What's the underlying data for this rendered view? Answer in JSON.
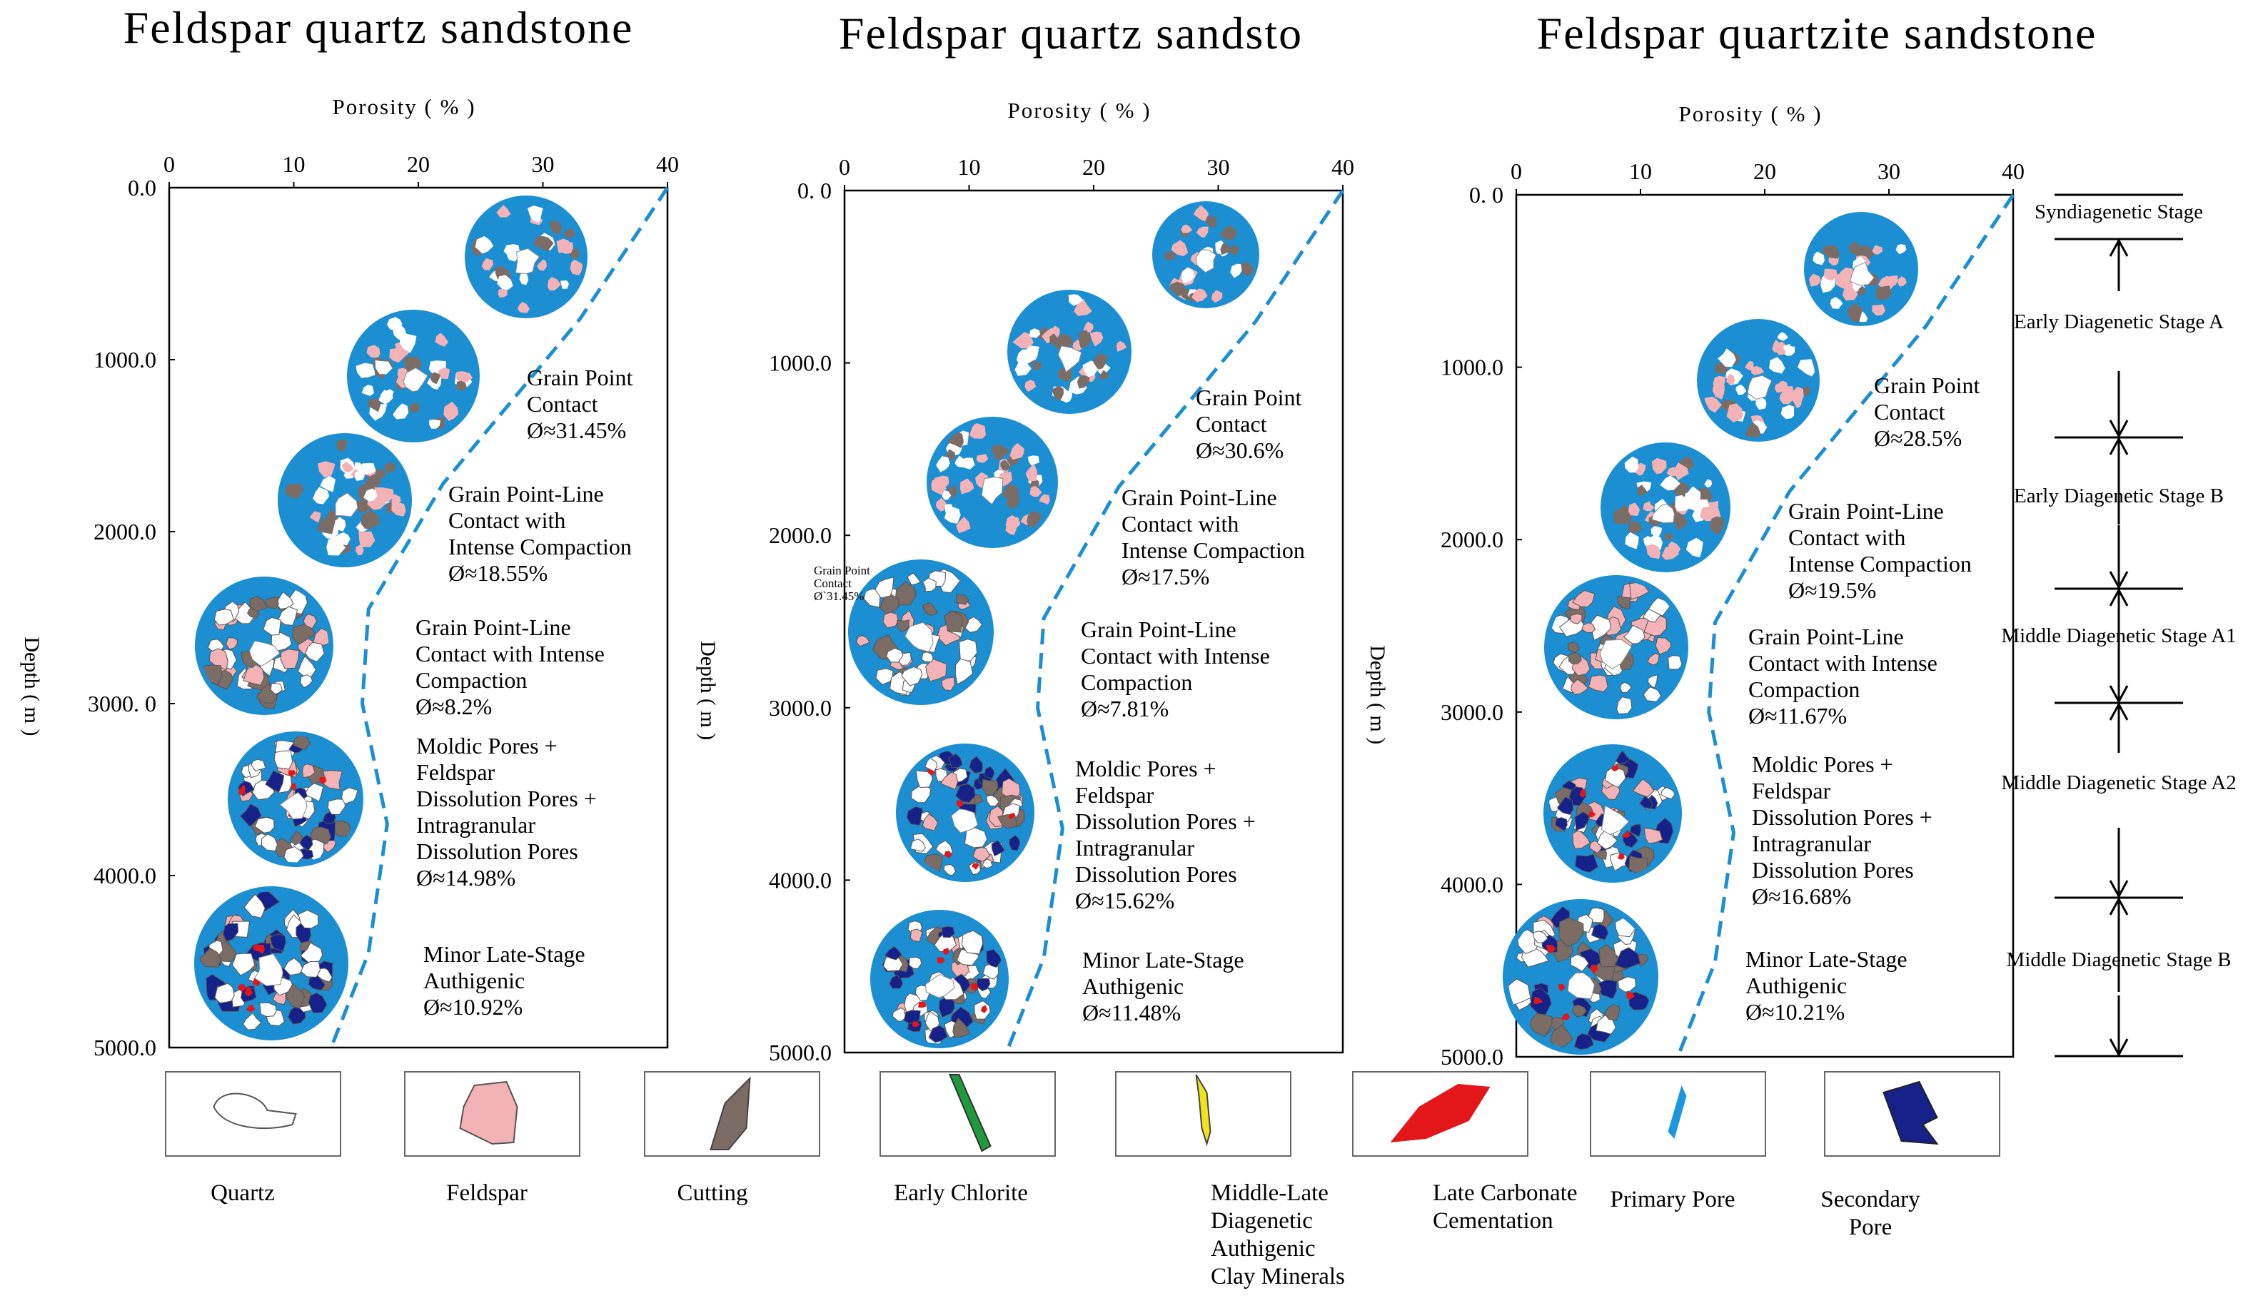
{
  "colors": {
    "disk_blue": "#1b8fd2",
    "curve_blue": "#1b8fd2",
    "quartz": "#ffffff",
    "feldspar": "#f3b2b6",
    "cutting": "#7b6c66",
    "early_chlorite": "#1f9a3c",
    "clay_minerals": "#f2e21e",
    "late_carbonate": "#e3161a",
    "primary_pore": "#1e96de",
    "secondary_pore": "#16218a"
  },
  "panels": [
    {
      "title": "Feldspar quartz sandstone",
      "x_axis_title": "Porosity ( % )",
      "x_ticks": [
        "0",
        "10",
        "20",
        "30",
        "40"
      ],
      "y_axis_title": "Depth ( m )",
      "y_ticks": [
        "0.0",
        "1000.0",
        "2000.0",
        "3000. 0",
        "4000.0",
        "5000.0"
      ],
      "annotations": [
        {
          "lines": [
            "Grain Point",
            "Contact",
            "Ø≈31.45%"
          ]
        },
        {
          "lines": [
            "Grain Point-Line",
            "Contact with",
            "Intense Compaction",
            "Ø≈18.55%"
          ]
        },
        {
          "lines": [
            "Grain Point-Line",
            "Contact with Intense",
            "Compaction",
            "Ø≈8.2%"
          ]
        },
        {
          "lines": [
            "Moldic Pores +",
            "Feldspar",
            "Dissolution Pores +",
            "Intragranular",
            "Dissolution Pores",
            "Ø≈14.98%"
          ]
        },
        {
          "lines": [
            "Minor Late-Stage",
            "Authigenic",
            "Ø≈10.92%"
          ]
        }
      ],
      "curve": [
        [
          40,
          0
        ],
        [
          33,
          760
        ],
        [
          22,
          1720
        ],
        [
          16,
          2450
        ],
        [
          15.5,
          3000
        ],
        [
          17.5,
          3700
        ],
        [
          16,
          4450
        ],
        [
          13,
          5000
        ]
      ]
    },
    {
      "title": "Feldspar quartz sandsto",
      "x_axis_title": "Porosity ( % )",
      "x_ticks": [
        "0",
        "10",
        "20",
        "30",
        "40"
      ],
      "y_axis_title": "Depth ( m )",
      "y_ticks": [
        "0. 0",
        "1000.0",
        "2000.0",
        "3000.0",
        "4000.0",
        "5000.0"
      ],
      "side_note": [
        "Grain Point",
        "Contact",
        "Ø`31.45%"
      ],
      "annotations": [
        {
          "lines": [
            "Grain Point",
            "Contact",
            "Ø≈30.6%"
          ]
        },
        {
          "lines": [
            "Grain Point-Line",
            "Contact with",
            "Intense Compaction",
            "Ø≈17.5%"
          ]
        },
        {
          "lines": [
            "Grain Point-Line",
            "Contact with Intense",
            "Compaction",
            "Ø≈7.81%"
          ]
        },
        {
          "lines": [
            "Moldic Pores +",
            "Feldspar",
            "Dissolution Pores +",
            "Intragranular",
            "Dissolution Pores",
            "Ø≈15.62%"
          ]
        },
        {
          "lines": [
            "Minor Late-Stage",
            "Authigenic",
            "Ø≈11.48%"
          ]
        }
      ],
      "curve": [
        [
          40,
          0
        ],
        [
          33,
          760
        ],
        [
          22,
          1720
        ],
        [
          16,
          2480
        ],
        [
          15.5,
          3000
        ],
        [
          17.5,
          3700
        ],
        [
          16,
          4450
        ],
        [
          13,
          5000
        ]
      ]
    },
    {
      "title": "Feldspar quartzite sandstone",
      "x_axis_title": "Porosity ( % )",
      "x_ticks": [
        "0",
        "10",
        "20",
        "30",
        "40"
      ],
      "y_axis_title": "Depth ( m )",
      "y_ticks": [
        "0. 0",
        "1000.0",
        "2000.0",
        "3000.0",
        "4000.0",
        "5000.0"
      ],
      "annotations": [
        {
          "lines": [
            "Grain Point",
            "Contact",
            "Ø≈28.5%"
          ]
        },
        {
          "lines": [
            "Grain Point-Line",
            "Contact with",
            "Intense Compaction",
            "Ø≈19.5%"
          ]
        },
        {
          "lines": [
            "Grain Point-Line",
            "Contact with Intense",
            "Compaction",
            "Ø≈11.67%"
          ]
        },
        {
          "lines": [
            "Moldic Pores +",
            "Feldspar",
            "Dissolution Pores +",
            "Intragranular",
            "Dissolution Pores",
            "Ø≈16.68%"
          ]
        },
        {
          "lines": [
            "Minor Late-Stage",
            "Authigenic",
            "Ø≈10.21%"
          ]
        }
      ],
      "curve": [
        [
          40,
          0
        ],
        [
          33,
          760
        ],
        [
          22,
          1720
        ],
        [
          16,
          2480
        ],
        [
          15.5,
          3000
        ],
        [
          17.5,
          3700
        ],
        [
          16,
          4450
        ],
        [
          13,
          5000
        ]
      ]
    }
  ],
  "stages": [
    "Syndiagenetic Stage",
    "Early Diagenetic Stage A",
    "Early Diagenetic Stage B",
    "Middle Diagenetic Stage A1",
    "Middle Diagenetic Stage A2",
    "Middle Diagenetic Stage B"
  ],
  "legend": [
    {
      "key": "quartz",
      "lines": [
        "Quartz"
      ]
    },
    {
      "key": "feldspar",
      "lines": [
        "Feldspar"
      ]
    },
    {
      "key": "cutting",
      "lines": [
        "Cutting"
      ]
    },
    {
      "key": "early_chlorite",
      "lines": [
        "Early Chlorite"
      ]
    },
    {
      "key": "clay",
      "lines": [
        "Middle-Late",
        "Diagenetic",
        "Authigenic",
        "Clay Minerals"
      ]
    },
    {
      "key": "carbonate",
      "lines": [
        "Late Carbonate",
        "Cementation"
      ]
    },
    {
      "key": "primary_pore",
      "lines": [
        "Primary Pore"
      ]
    },
    {
      "key": "secondary_pore",
      "lines": [
        "Secondary",
        "Pore"
      ]
    }
  ]
}
